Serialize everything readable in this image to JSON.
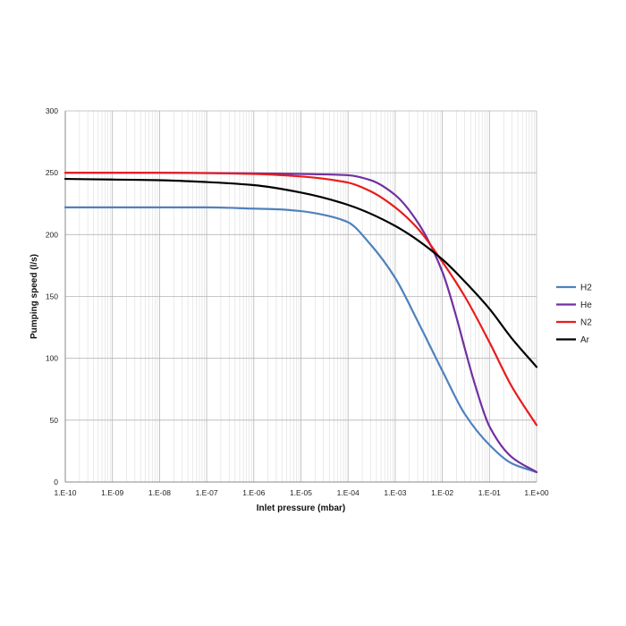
{
  "chart_data": {
    "type": "line",
    "title": "",
    "xlabel": "Inlet pressure (mbar)",
    "ylabel": "Pumping speed (l/s)",
    "x_scale": "log",
    "xlim": [
      1e-10,
      1
    ],
    "ylim": [
      0,
      300
    ],
    "x_tick_values": [
      1e-10,
      1e-09,
      1e-08,
      1e-07,
      1e-06,
      1e-05,
      0.0001,
      0.001,
      0.01,
      0.1,
      1
    ],
    "x_tick_labels": [
      "1.E-10",
      "1.E-09",
      "1.E-08",
      "1.E-07",
      "1.E-06",
      "1.E-05",
      "1.E-04",
      "1.E-03",
      "1.E-02",
      "1.E-01",
      "1.E+00"
    ],
    "y_ticks": [
      0,
      50,
      100,
      150,
      200,
      250,
      300
    ],
    "grid": true,
    "legend_position": "right",
    "series": [
      {
        "name": "H2",
        "color": "#4f81bd",
        "x": [
          1e-10,
          1e-09,
          1e-08,
          1e-07,
          1e-06,
          3e-06,
          1e-05,
          3e-05,
          0.0001,
          0.0003,
          0.001,
          0.003,
          0.01,
          0.03,
          0.1,
          0.3,
          1
        ],
        "y": [
          222,
          222,
          222,
          222,
          221,
          220.5,
          219,
          216,
          210,
          192,
          165,
          130,
          90,
          55,
          30,
          15,
          8
        ]
      },
      {
        "name": "He",
        "color": "#7030a0",
        "x": [
          1e-10,
          1e-08,
          1e-06,
          1e-05,
          0.0001,
          0.0003,
          0.001,
          0.003,
          0.01,
          0.02,
          0.03,
          0.05,
          0.1,
          0.3,
          1
        ],
        "y": [
          250,
          250,
          249.5,
          249,
          248,
          244,
          232,
          210,
          170,
          133,
          108,
          78,
          45,
          20,
          8
        ]
      },
      {
        "name": "N2",
        "color": "#e81c1c",
        "x": [
          1e-10,
          1e-08,
          1e-06,
          1e-05,
          0.0001,
          0.0003,
          0.001,
          0.003,
          0.01,
          0.03,
          0.1,
          0.3,
          1
        ],
        "y": [
          250,
          250,
          249,
          247,
          242,
          235,
          222,
          205,
          178,
          150,
          113,
          77,
          46
        ]
      },
      {
        "name": "Ar",
        "color": "#000000",
        "x": [
          1e-10,
          1e-09,
          1e-08,
          1e-07,
          1e-06,
          1e-05,
          0.0001,
          0.001,
          0.01,
          0.03,
          0.1,
          0.3,
          1
        ],
        "y": [
          245,
          244.5,
          244,
          242.5,
          240,
          234,
          224,
          207,
          180,
          162,
          140,
          116,
          93
        ]
      }
    ]
  }
}
